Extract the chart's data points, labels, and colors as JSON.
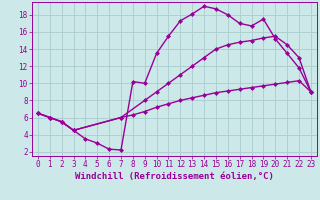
{
  "line1_x": [
    0,
    1,
    2,
    3,
    4,
    5,
    6,
    7,
    8,
    9,
    10,
    11,
    12,
    13,
    14,
    15,
    16,
    17,
    18,
    19,
    20,
    21,
    22,
    23
  ],
  "line1_y": [
    6.5,
    6.0,
    5.5,
    4.5,
    3.5,
    3.0,
    2.3,
    2.2,
    10.2,
    10.0,
    13.5,
    15.5,
    17.3,
    18.1,
    19.0,
    18.7,
    18.0,
    17.0,
    16.7,
    17.5,
    15.2,
    13.5,
    11.8,
    9.0
  ],
  "line2_x": [
    0,
    1,
    2,
    3,
    7,
    9,
    10,
    11,
    12,
    13,
    14,
    15,
    16,
    17,
    18,
    19,
    20,
    21,
    22,
    23
  ],
  "line2_y": [
    6.5,
    6.0,
    5.5,
    4.5,
    6.0,
    8.0,
    9.0,
    10.0,
    11.0,
    12.0,
    13.0,
    14.0,
    14.5,
    14.8,
    15.0,
    15.3,
    15.5,
    14.5,
    13.0,
    9.0
  ],
  "line3_x": [
    0,
    1,
    2,
    3,
    7,
    8,
    9,
    10,
    11,
    12,
    13,
    14,
    15,
    16,
    17,
    18,
    19,
    20,
    21,
    22,
    23
  ],
  "line3_y": [
    6.5,
    6.0,
    5.5,
    4.5,
    6.0,
    6.3,
    6.7,
    7.2,
    7.6,
    8.0,
    8.3,
    8.6,
    8.9,
    9.1,
    9.3,
    9.5,
    9.7,
    9.9,
    10.1,
    10.3,
    9.0
  ],
  "line_color": "#990099",
  "marker": "D",
  "marker_size": 2,
  "xlabel": "Windchill (Refroidissement éolien,°C)",
  "xlim_min": -0.5,
  "xlim_max": 23.5,
  "ylim_min": 1.5,
  "ylim_max": 19.5,
  "xticks": [
    0,
    1,
    2,
    3,
    4,
    5,
    6,
    7,
    8,
    9,
    10,
    11,
    12,
    13,
    14,
    15,
    16,
    17,
    18,
    19,
    20,
    21,
    22,
    23
  ],
  "yticks": [
    2,
    4,
    6,
    8,
    10,
    12,
    14,
    16,
    18
  ],
  "bg_color": "#cce8e8",
  "grid_color": "#aacccc",
  "line_width": 1.0,
  "xlabel_fontsize": 6.5,
  "tick_fontsize": 5.5,
  "fig_width": 3.2,
  "fig_height": 2.0,
  "fig_dpi": 100
}
